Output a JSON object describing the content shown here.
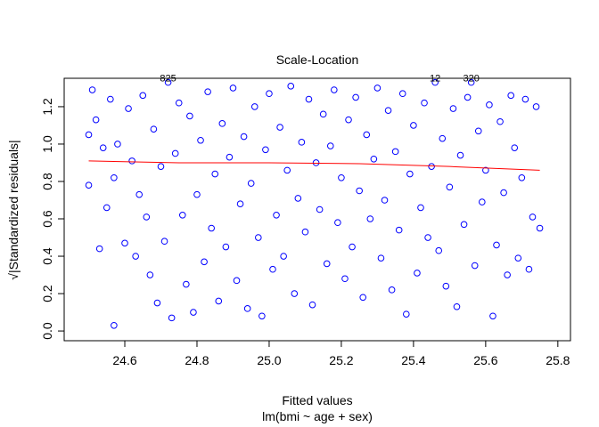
{
  "chart_data": {
    "type": "scatter",
    "title": "Scale-Location",
    "x_label": "Fitted values",
    "subtitle": "lm(bmi ~ age + sex)",
    "y_label": "√|Standardized residuals|",
    "x": [
      24.5,
      24.5,
      24.51,
      24.52,
      24.53,
      24.54,
      24.55,
      24.56,
      24.57,
      24.57,
      24.58,
      24.6,
      24.61,
      24.62,
      24.63,
      24.64,
      24.65,
      24.66,
      24.67,
      24.68,
      24.69,
      24.7,
      24.71,
      24.72,
      24.73,
      24.74,
      24.75,
      24.76,
      24.77,
      24.78,
      24.79,
      24.8,
      24.81,
      24.82,
      24.83,
      24.84,
      24.85,
      24.86,
      24.87,
      24.88,
      24.89,
      24.9,
      24.91,
      24.92,
      24.93,
      24.94,
      24.95,
      24.96,
      24.97,
      24.98,
      24.99,
      25.0,
      25.01,
      25.02,
      25.03,
      25.04,
      25.05,
      25.06,
      25.07,
      25.08,
      25.09,
      25.1,
      25.11,
      25.12,
      25.13,
      25.14,
      25.15,
      25.16,
      25.17,
      25.18,
      25.19,
      25.2,
      25.21,
      25.22,
      25.23,
      25.24,
      25.25,
      25.26,
      25.27,
      25.28,
      25.29,
      25.3,
      25.31,
      25.32,
      25.33,
      25.34,
      25.35,
      25.36,
      25.37,
      25.38,
      25.39,
      25.4,
      25.41,
      25.42,
      25.43,
      25.44,
      25.45,
      25.46,
      25.47,
      25.48,
      25.49,
      25.5,
      25.51,
      25.52,
      25.53,
      25.54,
      25.55,
      25.56,
      25.57,
      25.58,
      25.59,
      25.6,
      25.61,
      25.62,
      25.63,
      25.64,
      25.65,
      25.66,
      25.67,
      25.68,
      25.69,
      25.7,
      25.71,
      25.72,
      25.73,
      25.74,
      25.75
    ],
    "series": [
      {
        "color": "#0000ff",
        "values": [
          0.78,
          1.05,
          1.29,
          1.13,
          0.44,
          0.98,
          0.66,
          1.24,
          0.03,
          0.82,
          1.0,
          0.47,
          1.19,
          0.91,
          0.4,
          0.73,
          1.26,
          0.61,
          0.3,
          1.08,
          0.15,
          0.88,
          0.48,
          1.33,
          0.07,
          0.95,
          1.22,
          0.62,
          0.25,
          1.15,
          0.1,
          0.73,
          1.02,
          0.37,
          1.28,
          0.55,
          0.84,
          0.16,
          1.11,
          0.45,
          0.93,
          1.3,
          0.27,
          0.68,
          1.04,
          0.12,
          0.79,
          1.2,
          0.5,
          0.08,
          0.97,
          1.27,
          0.33,
          0.62,
          1.09,
          0.4,
          0.86,
          1.31,
          0.2,
          0.71,
          1.01,
          0.53,
          1.24,
          0.14,
          0.9,
          0.65,
          1.16,
          0.36,
          0.99,
          1.29,
          0.58,
          0.82,
          0.28,
          1.13,
          0.45,
          1.25,
          0.75,
          0.18,
          1.05,
          0.6,
          0.92,
          1.3,
          0.39,
          0.7,
          1.18,
          0.22,
          0.96,
          0.54,
          1.27,
          0.09,
          0.84,
          1.1,
          0.31,
          0.66,
          1.22,
          0.5,
          0.88,
          1.33,
          0.43,
          1.03,
          0.24,
          0.77,
          1.19,
          0.13,
          0.94,
          0.57,
          1.25,
          1.33,
          0.35,
          1.07,
          0.69,
          0.86,
          1.21,
          0.08,
          0.46,
          1.12,
          0.74,
          0.3,
          1.26,
          0.98,
          0.39,
          0.82,
          1.24,
          0.33,
          0.61,
          1.2,
          0.55
        ]
      }
    ],
    "smooth": {
      "color": "#ff0000",
      "x": [
        24.5,
        24.75,
        25.0,
        25.25,
        25.5,
        25.75
      ],
      "y": [
        0.91,
        0.9,
        0.9,
        0.895,
        0.88,
        0.86
      ]
    },
    "annotations": [
      {
        "text": "825",
        "x": 24.72,
        "y": 1.33
      },
      {
        "text": "12",
        "x": 25.46,
        "y": 1.33
      },
      {
        "text": "320",
        "x": 25.56,
        "y": 1.33
      }
    ],
    "xlim": [
      24.432,
      25.835
    ],
    "ylim": [
      -0.052,
      1.352
    ],
    "xticks": [
      24.6,
      24.8,
      {
        "value": 25,
        "label": "25.0"
      },
      25.2,
      25.4,
      25.6,
      25.8
    ],
    "yticks": [
      {
        "value": 0,
        "label": "0.0"
      },
      0.2,
      0.4,
      0.6,
      0.8,
      {
        "value": 1,
        "label": "1.0"
      },
      1.2
    ]
  }
}
